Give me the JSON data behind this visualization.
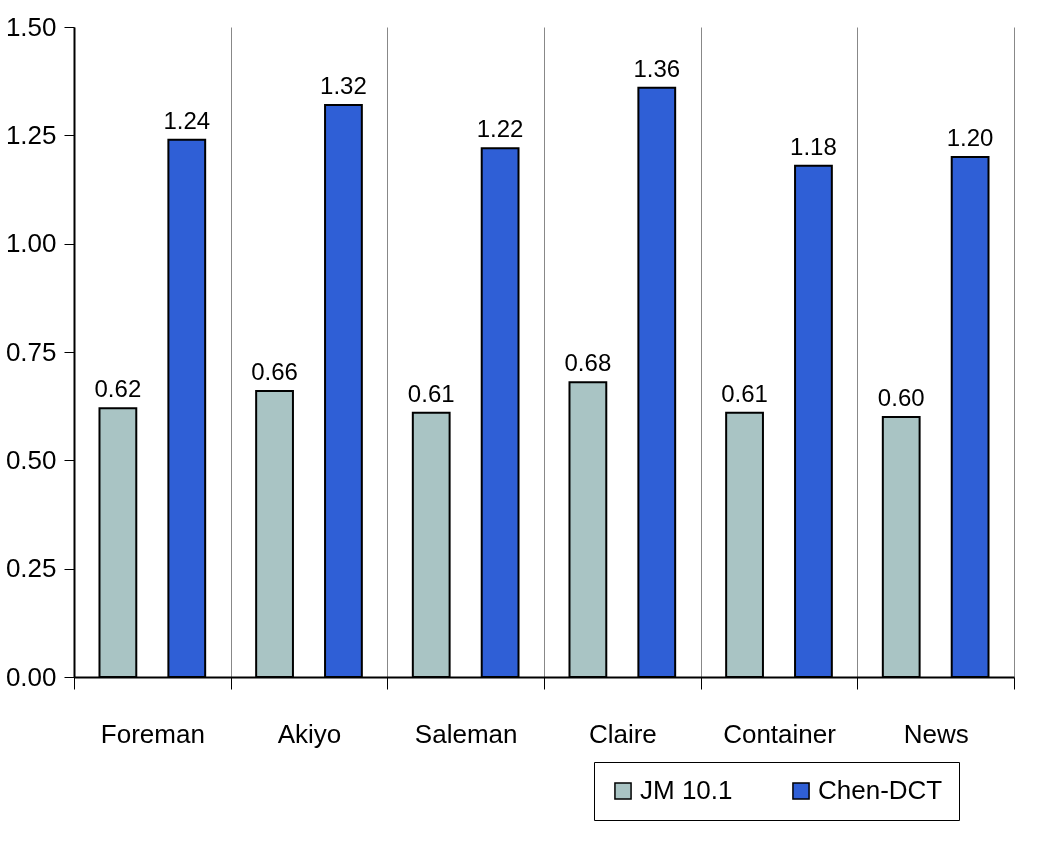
{
  "chart_data": {
    "type": "bar",
    "categories": [
      "Foreman",
      "Akiyo",
      "Saleman",
      "Claire",
      "Container",
      "News"
    ],
    "series": [
      {
        "name": "JM 10.1",
        "color": "#a9c4c4",
        "values": [
          0.62,
          0.66,
          0.61,
          0.68,
          0.61,
          0.6
        ],
        "value_labels": [
          "0.62",
          "0.66",
          "0.61",
          "0.68",
          "0.61",
          "0.60"
        ]
      },
      {
        "name": "Chen-DCT",
        "color": "#2f5fd6",
        "values": [
          1.24,
          1.32,
          1.22,
          1.36,
          1.18,
          1.2
        ],
        "value_labels": [
          "1.24",
          "1.32",
          "1.22",
          "1.36",
          "1.18",
          "1.20"
        ]
      }
    ],
    "ylim": [
      0,
      1.5
    ],
    "yticks": [
      {
        "value": 0,
        "label": "0.00"
      },
      0.25,
      {
        "value": 0.5,
        "label": "0.50"
      },
      0.75,
      {
        "value": 1,
        "label": "1.00"
      },
      1.25,
      {
        "value": 1.5,
        "label": "1.50"
      }
    ],
    "grid": "x",
    "legend": "bottom right"
  }
}
